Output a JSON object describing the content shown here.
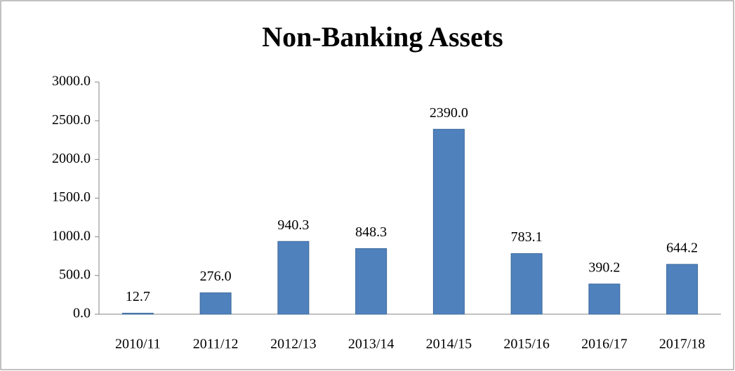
{
  "chart_data": {
    "type": "bar",
    "title": "Non-Banking Assets",
    "categories": [
      "2010/11",
      "2011/12",
      "2012/13",
      "2013/14",
      "2014/15",
      "2015/16",
      "2016/17",
      "2017/18"
    ],
    "values": [
      12.7,
      276.0,
      940.3,
      848.3,
      2390.0,
      783.1,
      390.2,
      644.2
    ],
    "value_labels": [
      "12.7",
      "276.0",
      "940.3",
      "848.3",
      "2390.0",
      "783.1",
      "390.2",
      "644.2"
    ],
    "color": "#4f81bd",
    "ylim": [
      0,
      3000
    ],
    "yticks": [
      {
        "value": 0,
        "label": "0.0"
      },
      {
        "value": 500,
        "label": "500.0"
      },
      {
        "value": 1000,
        "label": "1000.0"
      },
      {
        "value": 1500,
        "label": "1500.0"
      },
      {
        "value": 2000,
        "label": "2000.0"
      },
      {
        "value": 2500,
        "label": "2500.0"
      },
      {
        "value": 3000,
        "label": "3000.0"
      }
    ],
    "grid": false
  }
}
